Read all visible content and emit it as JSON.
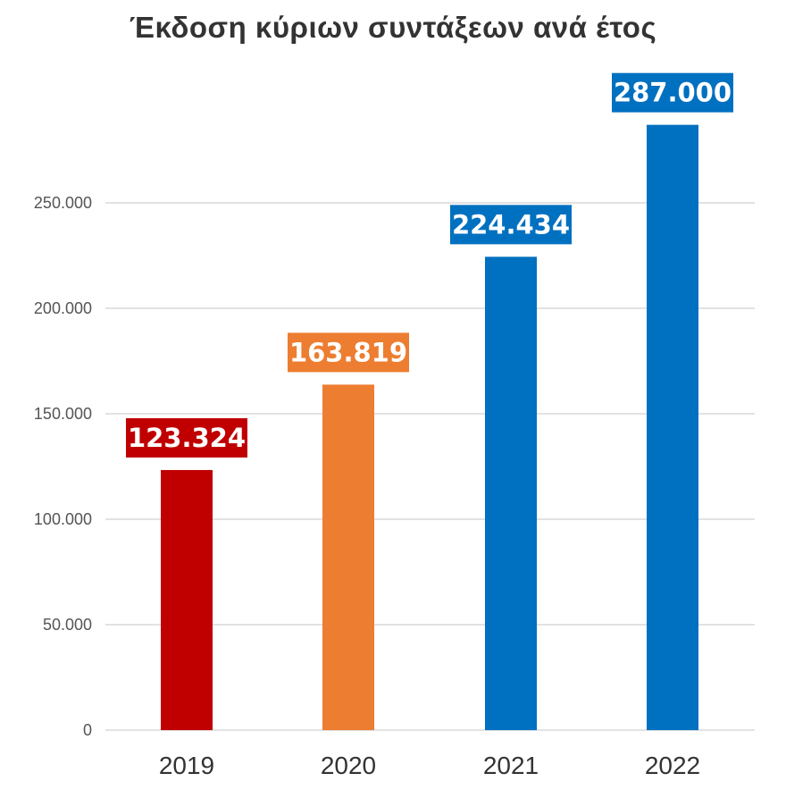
{
  "chart_data": {
    "type": "bar",
    "title": "Έκδοση κύριων συντάξεων ανά έτος",
    "categories": [
      "2019",
      "2020",
      "2021",
      "2022"
    ],
    "values": [
      123324,
      163819,
      224434,
      287000
    ],
    "data_labels": [
      "123.324",
      "163.819",
      "224.434",
      "287.000"
    ],
    "colors": [
      "#c00000",
      "#ed7d31",
      "#0070c0",
      "#0070c0"
    ],
    "ylim": [
      0,
      250000
    ],
    "yticks": [
      0,
      50000,
      100000,
      150000,
      200000,
      250000
    ],
    "ytick_labels": [
      "0",
      "50.000",
      "100.000",
      "150.000",
      "200.000",
      "250.000"
    ],
    "grid": true,
    "gridline_color": "#d9d9d9",
    "xlabel": "",
    "ylabel": ""
  }
}
